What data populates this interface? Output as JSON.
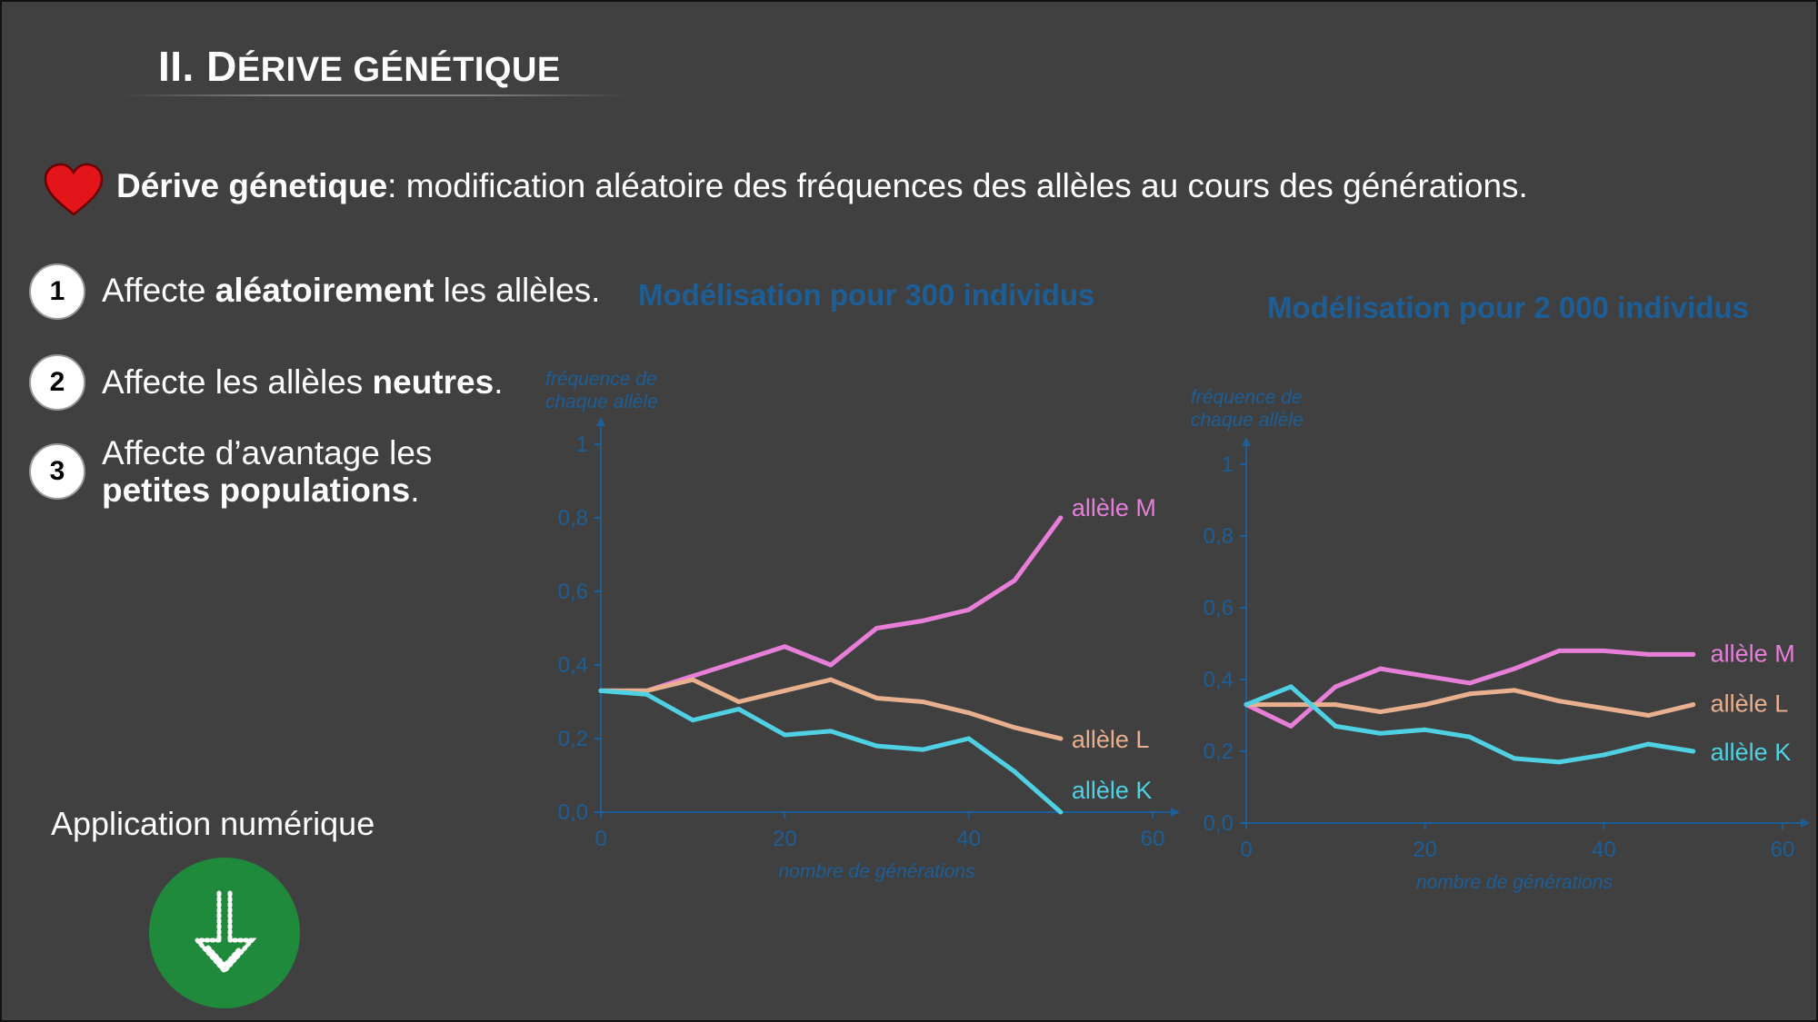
{
  "slide": {
    "title_a": "II. D",
    "title_b": "ÉRIVE GÉNÉTIQUE",
    "definition": {
      "term": "Dérive génetique",
      "text": ": modification aléatoire des fréquences des allèles au cours des générations.",
      "icon": "heart-icon"
    },
    "points": [
      {
        "num": "1",
        "pre": "Affecte ",
        "bold": "aléatoirement",
        "post": " les allèles."
      },
      {
        "num": "2",
        "pre": "Affecte les allèles ",
        "bold": "neutres",
        "post": "."
      },
      {
        "num": "3",
        "pre": "Affecte d’avantage les",
        "bold": "petites populations",
        "post": "."
      }
    ],
    "app": {
      "label": "Application numérique",
      "icon": "download-arrow-icon"
    }
  },
  "colors": {
    "axis": "#1d5e97",
    "M": "#e77fd9",
    "L": "#e8b08e",
    "K": "#4fd1e3",
    "button": "#1f8a3b"
  },
  "chart_data": [
    {
      "type": "line",
      "title": "Modélisation pour 300 individus",
      "ylabel_line1": "fréquence de",
      "ylabel_line2": "chaque allèle",
      "xlabel": "nombre de générations",
      "xlim": [
        0,
        60
      ],
      "ylim": [
        0,
        1
      ],
      "xticks": [
        0,
        20,
        40,
        60
      ],
      "xtick_labels": [
        "0",
        "20",
        "40",
        "60"
      ],
      "yticks": [
        0,
        0.2,
        0.4,
        0.6,
        0.8,
        1
      ],
      "ytick_labels": [
        "0,0",
        "0,2",
        "0,4",
        "0,6",
        "0,8",
        "1"
      ],
      "series": [
        {
          "key": "M",
          "name": "allèle M",
          "x": [
            0,
            5,
            10,
            15,
            20,
            25,
            30,
            35,
            40,
            45,
            50
          ],
          "values": [
            0.33,
            0.33,
            0.37,
            0.41,
            0.45,
            0.4,
            0.5,
            0.52,
            0.55,
            0.63,
            0.8
          ]
        },
        {
          "key": "L",
          "name": "allèle L",
          "x": [
            0,
            5,
            10,
            15,
            20,
            25,
            30,
            35,
            40,
            45,
            50
          ],
          "values": [
            0.33,
            0.33,
            0.36,
            0.3,
            0.33,
            0.36,
            0.31,
            0.3,
            0.27,
            0.23,
            0.2
          ]
        },
        {
          "key": "K",
          "name": "allèle K",
          "x": [
            0,
            5,
            10,
            15,
            20,
            25,
            30,
            35,
            40,
            45,
            50
          ],
          "values": [
            0.33,
            0.32,
            0.25,
            0.28,
            0.21,
            0.22,
            0.18,
            0.17,
            0.2,
            0.11,
            0.0
          ]
        }
      ]
    },
    {
      "type": "line",
      "title": "Modélisation pour 2 000 individus",
      "ylabel_line1": "fréquence de",
      "ylabel_line2": "chaque allèle",
      "xlabel": "nombre de générations",
      "xlim": [
        0,
        60
      ],
      "ylim": [
        0,
        1
      ],
      "xticks": [
        0,
        20,
        40,
        60
      ],
      "xtick_labels": [
        "0",
        "20",
        "40",
        "60"
      ],
      "yticks": [
        0,
        0.2,
        0.4,
        0.6,
        0.8,
        1
      ],
      "ytick_labels": [
        "0,0",
        "0,2",
        "0,4",
        "0,6",
        "0,8",
        "1"
      ],
      "series": [
        {
          "key": "M",
          "name": "allèle M",
          "x": [
            0,
            5,
            10,
            15,
            20,
            25,
            30,
            35,
            40,
            45,
            50
          ],
          "values": [
            0.33,
            0.27,
            0.38,
            0.43,
            0.41,
            0.39,
            0.43,
            0.48,
            0.48,
            0.47,
            0.47
          ]
        },
        {
          "key": "L",
          "name": "allèle L",
          "x": [
            0,
            5,
            10,
            15,
            20,
            25,
            30,
            35,
            40,
            45,
            50
          ],
          "values": [
            0.33,
            0.33,
            0.33,
            0.31,
            0.33,
            0.36,
            0.37,
            0.34,
            0.32,
            0.3,
            0.33
          ]
        },
        {
          "key": "K",
          "name": "allèle K",
          "x": [
            0,
            5,
            10,
            15,
            20,
            25,
            30,
            35,
            40,
            45,
            50
          ],
          "values": [
            0.33,
            0.38,
            0.27,
            0.25,
            0.26,
            0.24,
            0.18,
            0.17,
            0.19,
            0.22,
            0.2
          ]
        }
      ]
    }
  ]
}
